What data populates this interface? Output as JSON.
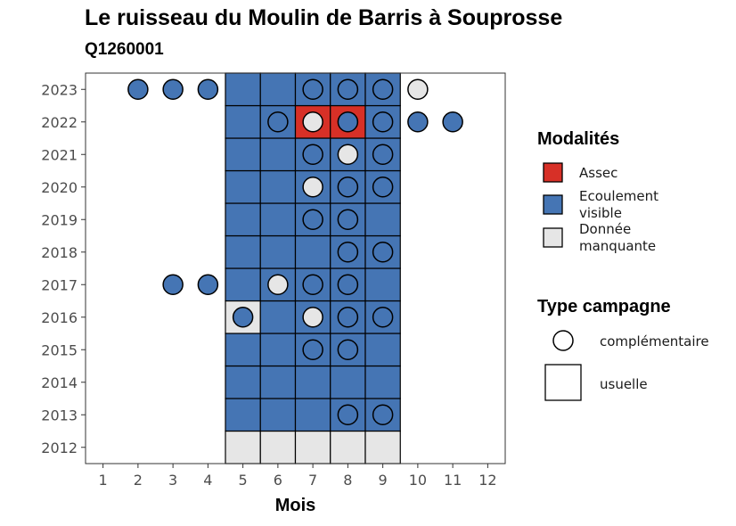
{
  "title": "Le ruisseau du Moulin de Barris à Souprosse",
  "subtitle": "Q1260001",
  "colors": {
    "Assec": "#d73027",
    "Ecoulement visible": "#4575b4",
    "Donnée manquante": "#e6e6e6"
  },
  "legend": {
    "modalites_title": "Modalités",
    "modalites": [
      {
        "key": "Assec",
        "label": [
          "Assec"
        ]
      },
      {
        "key": "Ecoulement visible",
        "label": [
          "Ecoulement",
          "visible"
        ]
      },
      {
        "key": "Donnée manquante",
        "label": [
          "Donnée",
          "manquante"
        ]
      }
    ],
    "type_title": "Type campagne",
    "types": [
      {
        "shape": "circle",
        "label": "complémentaire"
      },
      {
        "shape": "square",
        "label": "usuelle"
      }
    ]
  },
  "chart_data": {
    "type": "heatmap",
    "xlabel": "Mois",
    "ylabel": "",
    "x_ticks": [
      1,
      2,
      3,
      4,
      5,
      6,
      7,
      8,
      9,
      10,
      11,
      12
    ],
    "y_ticks": [
      2012,
      2013,
      2014,
      2015,
      2016,
      2017,
      2018,
      2019,
      2020,
      2021,
      2022,
      2023
    ],
    "xlim": [
      0.5,
      12.5
    ],
    "ylim": [
      2011.5,
      2023.5
    ],
    "grid": false,
    "legend_position": "right",
    "usuelle": [
      {
        "year": 2012,
        "month": 5,
        "status": "Donnée manquante"
      },
      {
        "year": 2012,
        "month": 6,
        "status": "Donnée manquante"
      },
      {
        "year": 2012,
        "month": 7,
        "status": "Donnée manquante"
      },
      {
        "year": 2012,
        "month": 8,
        "status": "Donnée manquante"
      },
      {
        "year": 2012,
        "month": 9,
        "status": "Donnée manquante"
      },
      {
        "year": 2013,
        "month": 5,
        "status": "Ecoulement visible"
      },
      {
        "year": 2013,
        "month": 6,
        "status": "Ecoulement visible"
      },
      {
        "year": 2013,
        "month": 7,
        "status": "Ecoulement visible"
      },
      {
        "year": 2013,
        "month": 8,
        "status": "Ecoulement visible"
      },
      {
        "year": 2013,
        "month": 9,
        "status": "Ecoulement visible"
      },
      {
        "year": 2014,
        "month": 5,
        "status": "Ecoulement visible"
      },
      {
        "year": 2014,
        "month": 6,
        "status": "Ecoulement visible"
      },
      {
        "year": 2014,
        "month": 7,
        "status": "Ecoulement visible"
      },
      {
        "year": 2014,
        "month": 8,
        "status": "Ecoulement visible"
      },
      {
        "year": 2014,
        "month": 9,
        "status": "Ecoulement visible"
      },
      {
        "year": 2015,
        "month": 5,
        "status": "Ecoulement visible"
      },
      {
        "year": 2015,
        "month": 6,
        "status": "Ecoulement visible"
      },
      {
        "year": 2015,
        "month": 7,
        "status": "Ecoulement visible"
      },
      {
        "year": 2015,
        "month": 8,
        "status": "Ecoulement visible"
      },
      {
        "year": 2015,
        "month": 9,
        "status": "Ecoulement visible"
      },
      {
        "year": 2016,
        "month": 5,
        "status": "Donnée manquante"
      },
      {
        "year": 2016,
        "month": 6,
        "status": "Ecoulement visible"
      },
      {
        "year": 2016,
        "month": 7,
        "status": "Ecoulement visible"
      },
      {
        "year": 2016,
        "month": 8,
        "status": "Ecoulement visible"
      },
      {
        "year": 2016,
        "month": 9,
        "status": "Ecoulement visible"
      },
      {
        "year": 2017,
        "month": 5,
        "status": "Ecoulement visible"
      },
      {
        "year": 2017,
        "month": 6,
        "status": "Ecoulement visible"
      },
      {
        "year": 2017,
        "month": 7,
        "status": "Ecoulement visible"
      },
      {
        "year": 2017,
        "month": 8,
        "status": "Ecoulement visible"
      },
      {
        "year": 2017,
        "month": 9,
        "status": "Ecoulement visible"
      },
      {
        "year": 2018,
        "month": 5,
        "status": "Ecoulement visible"
      },
      {
        "year": 2018,
        "month": 6,
        "status": "Ecoulement visible"
      },
      {
        "year": 2018,
        "month": 7,
        "status": "Ecoulement visible"
      },
      {
        "year": 2018,
        "month": 8,
        "status": "Ecoulement visible"
      },
      {
        "year": 2018,
        "month": 9,
        "status": "Ecoulement visible"
      },
      {
        "year": 2019,
        "month": 5,
        "status": "Ecoulement visible"
      },
      {
        "year": 2019,
        "month": 6,
        "status": "Ecoulement visible"
      },
      {
        "year": 2019,
        "month": 7,
        "status": "Ecoulement visible"
      },
      {
        "year": 2019,
        "month": 8,
        "status": "Ecoulement visible"
      },
      {
        "year": 2019,
        "month": 9,
        "status": "Ecoulement visible"
      },
      {
        "year": 2020,
        "month": 5,
        "status": "Ecoulement visible"
      },
      {
        "year": 2020,
        "month": 6,
        "status": "Ecoulement visible"
      },
      {
        "year": 2020,
        "month": 7,
        "status": "Ecoulement visible"
      },
      {
        "year": 2020,
        "month": 8,
        "status": "Ecoulement visible"
      },
      {
        "year": 2020,
        "month": 9,
        "status": "Ecoulement visible"
      },
      {
        "year": 2021,
        "month": 5,
        "status": "Ecoulement visible"
      },
      {
        "year": 2021,
        "month": 6,
        "status": "Ecoulement visible"
      },
      {
        "year": 2021,
        "month": 7,
        "status": "Ecoulement visible"
      },
      {
        "year": 2021,
        "month": 8,
        "status": "Ecoulement visible"
      },
      {
        "year": 2021,
        "month": 9,
        "status": "Ecoulement visible"
      },
      {
        "year": 2022,
        "month": 5,
        "status": "Ecoulement visible"
      },
      {
        "year": 2022,
        "month": 6,
        "status": "Ecoulement visible"
      },
      {
        "year": 2022,
        "month": 7,
        "status": "Assec"
      },
      {
        "year": 2022,
        "month": 8,
        "status": "Assec"
      },
      {
        "year": 2022,
        "month": 9,
        "status": "Ecoulement visible"
      },
      {
        "year": 2023,
        "month": 5,
        "status": "Ecoulement visible"
      },
      {
        "year": 2023,
        "month": 6,
        "status": "Ecoulement visible"
      },
      {
        "year": 2023,
        "month": 7,
        "status": "Ecoulement visible"
      },
      {
        "year": 2023,
        "month": 8,
        "status": "Ecoulement visible"
      },
      {
        "year": 2023,
        "month": 9,
        "status": "Ecoulement visible"
      }
    ],
    "complementaire": [
      {
        "year": 2023,
        "month": 2,
        "status": "Ecoulement visible"
      },
      {
        "year": 2023,
        "month": 3,
        "status": "Ecoulement visible"
      },
      {
        "year": 2023,
        "month": 4,
        "status": "Ecoulement visible"
      },
      {
        "year": 2023,
        "month": 7,
        "status": "Ecoulement visible"
      },
      {
        "year": 2023,
        "month": 8,
        "status": "Ecoulement visible"
      },
      {
        "year": 2023,
        "month": 9,
        "status": "Ecoulement visible"
      },
      {
        "year": 2023,
        "month": 10,
        "status": "Donnée manquante"
      },
      {
        "year": 2022,
        "month": 6,
        "status": "Ecoulement visible"
      },
      {
        "year": 2022,
        "month": 7,
        "status": "Donnée manquante"
      },
      {
        "year": 2022,
        "month": 8,
        "status": "Ecoulement visible"
      },
      {
        "year": 2022,
        "month": 9,
        "status": "Ecoulement visible"
      },
      {
        "year": 2022,
        "month": 10,
        "status": "Ecoulement visible"
      },
      {
        "year": 2022,
        "month": 11,
        "status": "Ecoulement visible"
      },
      {
        "year": 2021,
        "month": 7,
        "status": "Ecoulement visible"
      },
      {
        "year": 2021,
        "month": 8,
        "status": "Donnée manquante"
      },
      {
        "year": 2021,
        "month": 9,
        "status": "Ecoulement visible"
      },
      {
        "year": 2020,
        "month": 7,
        "status": "Donnée manquante"
      },
      {
        "year": 2020,
        "month": 8,
        "status": "Ecoulement visible"
      },
      {
        "year": 2020,
        "month": 9,
        "status": "Ecoulement visible"
      },
      {
        "year": 2019,
        "month": 7,
        "status": "Ecoulement visible"
      },
      {
        "year": 2019,
        "month": 8,
        "status": "Ecoulement visible"
      },
      {
        "year": 2018,
        "month": 8,
        "status": "Ecoulement visible"
      },
      {
        "year": 2018,
        "month": 9,
        "status": "Ecoulement visible"
      },
      {
        "year": 2017,
        "month": 3,
        "status": "Ecoulement visible"
      },
      {
        "year": 2017,
        "month": 4,
        "status": "Ecoulement visible"
      },
      {
        "year": 2017,
        "month": 6,
        "status": "Donnée manquante"
      },
      {
        "year": 2017,
        "month": 7,
        "status": "Ecoulement visible"
      },
      {
        "year": 2017,
        "month": 8,
        "status": "Ecoulement visible"
      },
      {
        "year": 2016,
        "month": 5,
        "status": "Ecoulement visible"
      },
      {
        "year": 2016,
        "month": 7,
        "status": "Donnée manquante"
      },
      {
        "year": 2016,
        "month": 8,
        "status": "Ecoulement visible"
      },
      {
        "year": 2016,
        "month": 9,
        "status": "Ecoulement visible"
      },
      {
        "year": 2015,
        "month": 7,
        "status": "Ecoulement visible"
      },
      {
        "year": 2015,
        "month": 8,
        "status": "Ecoulement visible"
      },
      {
        "year": 2013,
        "month": 8,
        "status": "Ecoulement visible"
      },
      {
        "year": 2013,
        "month": 9,
        "status": "Ecoulement visible"
      }
    ]
  }
}
